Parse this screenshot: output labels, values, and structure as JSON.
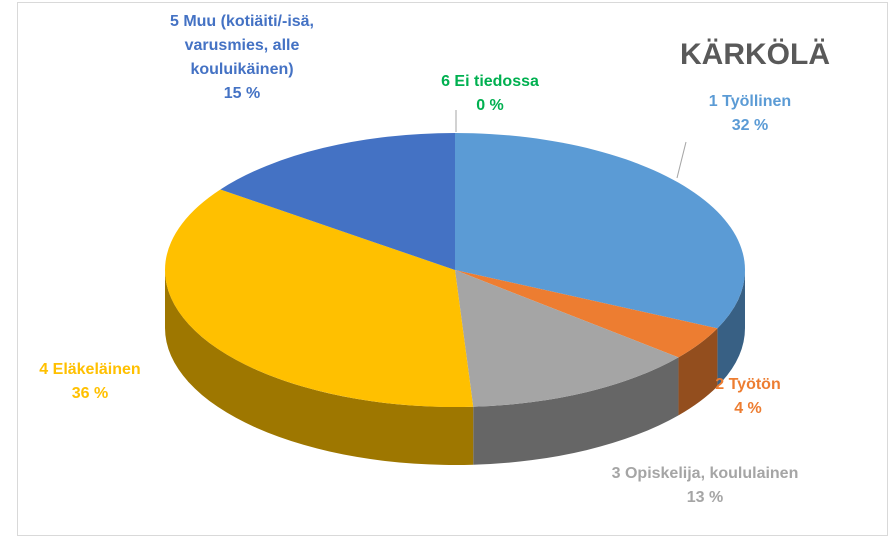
{
  "chart_data": {
    "type": "pie",
    "title": "KÄRKÖLÄ",
    "categories": [
      "1 Työllinen",
      "2 Työtön",
      "3 Opiskelija, koululainen",
      "4 Eläkeläinen",
      "5 Muu (kotiäiti/-isä, varusmies, alle kouluikäinen)",
      "6 Ei tiedossa"
    ],
    "values": [
      32,
      4,
      13,
      36,
      15,
      0
    ],
    "value_labels": [
      "32 %",
      "4 %",
      "13 %",
      "36 %",
      "15 %",
      "0 %"
    ],
    "colors": [
      "#5b9bd5",
      "#ed7d31",
      "#a5a5a5",
      "#ffc000",
      "#4472c4",
      "#70ad47"
    ]
  }
}
